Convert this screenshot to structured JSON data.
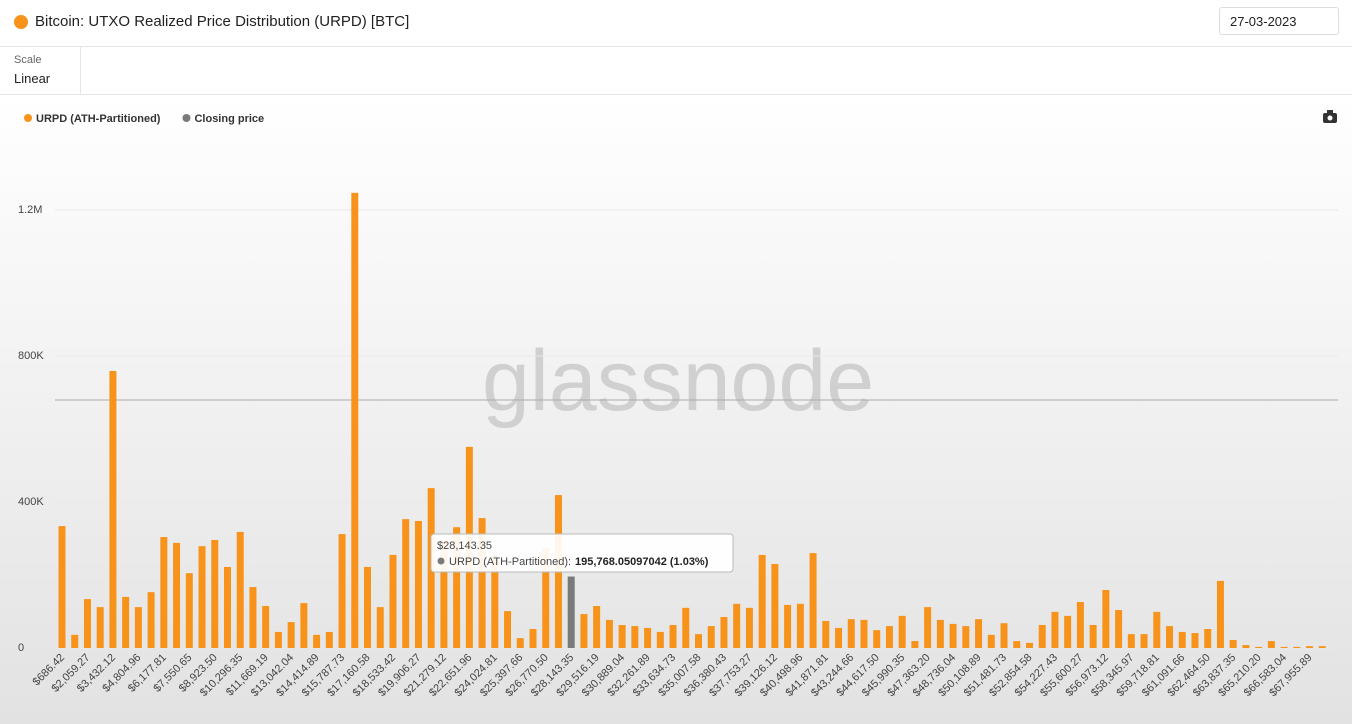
{
  "date": "27-03-2023",
  "scale_label": "Scale",
  "scale_value": "Linear",
  "watermark": "glassnode",
  "chart_data": {
    "type": "bar",
    "title": "Bitcoin: UTXO Realized Price Distribution (URPD) [BTC]",
    "categories": [
      "$686.42",
      null,
      "$2,059.27",
      null,
      "$3,432.12",
      null,
      "$4,804.96",
      null,
      "$6,177.81",
      null,
      "$7,550.65",
      null,
      "$8,923.50",
      null,
      "$10,296.35",
      null,
      "$11,669.19",
      null,
      "$13,042.04",
      null,
      "$14,414.89",
      null,
      "$15,787.73",
      null,
      "$17,160.58",
      null,
      "$18,533.42",
      null,
      "$19,906.27",
      null,
      "$21,279.12",
      null,
      "$22,651.96",
      null,
      "$24,024.81",
      null,
      "$25,397.66",
      null,
      "$26,770.50",
      null,
      "$28,143.35",
      null,
      "$29,516.19",
      null,
      "$30,889.04",
      null,
      "$32,261.89",
      null,
      "$33,634.73",
      null,
      "$35,007.58",
      null,
      "$36,380.43",
      null,
      "$37,753.27",
      null,
      "$39,126.12",
      null,
      "$40,498.96",
      null,
      "$41,871.81",
      null,
      "$43,244.66",
      null,
      "$44,617.50",
      null,
      "$45,990.35",
      null,
      "$47,363.20",
      null,
      "$48,736.04",
      null,
      "$50,108.89",
      null,
      "$51,481.73",
      null,
      "$52,854.58",
      null,
      "$54,227.43",
      null,
      "$55,600.27",
      null,
      "$56,973.12",
      null,
      "$58,345.97",
      null,
      "$59,718.81",
      null,
      "$61,091.66",
      null,
      "$62,464.50",
      null,
      "$63,837.35",
      null,
      "$65,210.20",
      null,
      "$66,583.04",
      null,
      "$67,955.89",
      null
    ],
    "series": [
      {
        "name": "URPD (ATH-Partitioned)",
        "color": "#f7931a",
        "values": [
          334000,
          36000,
          134000,
          112000,
          759000,
          140000,
          112000,
          153000,
          304000,
          288000,
          205000,
          279000,
          296000,
          222000,
          318000,
          167000,
          115000,
          44000,
          71000,
          123000,
          36000,
          44000,
          312000,
          1247000,
          222000,
          112000,
          255000,
          353000,
          348000,
          438000,
          296000,
          331000,
          551000,
          356000,
          255000,
          101000,
          27000,
          52000,
          274000,
          419000,
          null,
          93000,
          115000,
          77000,
          63000,
          60000,
          55000,
          44000,
          63000,
          110000,
          38000,
          60000,
          85000,
          121000,
          110000,
          255000,
          230000,
          118000,
          121000,
          260000,
          74000,
          55000,
          79000,
          77000,
          49000,
          60000,
          88000,
          19000,
          112000,
          77000,
          66000,
          60000,
          79000,
          36000,
          68000,
          19000,
          14000,
          63000,
          99000,
          88000,
          126000,
          63000,
          159000,
          104000,
          38000,
          38000,
          99000,
          60000,
          44000,
          41000,
          52000,
          184000,
          22000,
          8000,
          3000,
          19000,
          3000,
          3000,
          5000,
          5000
        ]
      },
      {
        "name": "Closing price",
        "color": "#7a7a7a",
        "values": [
          null,
          null,
          null,
          null,
          null,
          null,
          null,
          null,
          null,
          null,
          null,
          null,
          null,
          null,
          null,
          null,
          null,
          null,
          null,
          null,
          null,
          null,
          null,
          null,
          null,
          null,
          null,
          null,
          null,
          null,
          null,
          null,
          null,
          null,
          null,
          null,
          null,
          null,
          null,
          null,
          195768.05097042,
          null,
          null,
          null,
          null,
          null,
          null,
          null,
          null,
          null,
          null,
          null,
          null,
          null,
          null,
          null,
          null,
          null,
          null,
          null,
          null,
          null,
          null,
          null,
          null,
          null,
          null,
          null,
          null,
          null,
          null,
          null,
          null,
          null,
          null,
          null,
          null,
          null,
          null,
          null,
          null,
          null,
          null,
          null,
          null,
          null,
          null,
          null,
          null,
          null,
          null,
          null,
          null,
          null,
          null,
          null,
          null,
          null,
          null,
          null
        ]
      }
    ],
    "ylim": [
      0,
      1400000
    ],
    "yticks": [
      0,
      {
        "value": 400000,
        "label": "400K"
      },
      {
        "value": 800000,
        "label": "800K"
      },
      {
        "value": 1200000,
        "label": "1.2M"
      }
    ],
    "grid": true,
    "tooltip": {
      "title": "$28,143.35",
      "series": "URPD (ATH-Partitioned):",
      "value": "195,768.05097042 (1.03%)"
    }
  }
}
